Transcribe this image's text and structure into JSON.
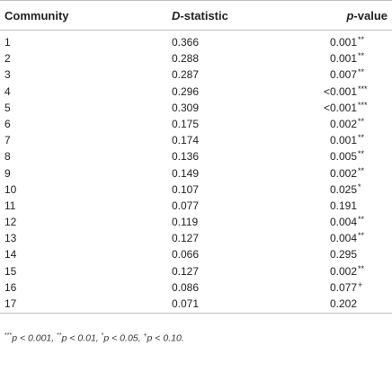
{
  "header": {
    "community": "Community",
    "d_italic": "D",
    "d_rest": "-statistic",
    "p_italic": "p",
    "p_rest": "-value"
  },
  "rows": [
    {
      "community": "1",
      "d": "0.366",
      "p": "0.001",
      "sig": "**"
    },
    {
      "community": "2",
      "d": "0.288",
      "p": "0.001",
      "sig": "**"
    },
    {
      "community": "3",
      "d": "0.287",
      "p": "0.007",
      "sig": "**"
    },
    {
      "community": "4",
      "d": "0.296",
      "p": "<0.001",
      "sig": "***"
    },
    {
      "community": "5",
      "d": "0.309",
      "p": "<0.001",
      "sig": "***"
    },
    {
      "community": "6",
      "d": "0.175",
      "p": "0.002",
      "sig": "**"
    },
    {
      "community": "7",
      "d": "0.174",
      "p": "0.001",
      "sig": "**"
    },
    {
      "community": "8",
      "d": "0.136",
      "p": "0.005",
      "sig": "**"
    },
    {
      "community": "9",
      "d": "0.149",
      "p": "0.002",
      "sig": "**"
    },
    {
      "community": "10",
      "d": "0.107",
      "p": "0.025",
      "sig": "*"
    },
    {
      "community": "11",
      "d": "0.077",
      "p": "0.191",
      "sig": ""
    },
    {
      "community": "12",
      "d": "0.119",
      "p": "0.004",
      "sig": "**"
    },
    {
      "community": "13",
      "d": "0.127",
      "p": "0.004",
      "sig": "**"
    },
    {
      "community": "14",
      "d": "0.066",
      "p": "0.295",
      "sig": ""
    },
    {
      "community": "15",
      "d": "0.127",
      "p": "0.002",
      "sig": "**"
    },
    {
      "community": "16",
      "d": "0.086",
      "p": "0.077",
      "sig": "+"
    },
    {
      "community": "17",
      "d": "0.071",
      "p": "0.202",
      "sig": ""
    }
  ],
  "footnote": {
    "s1": "***",
    "t1": "p < 0.001, ",
    "s2": "**",
    "t2": "p < 0.01, ",
    "s3": "*",
    "t3": "p < 0.05, ",
    "s4": "+",
    "t4": "p < 0.10."
  }
}
